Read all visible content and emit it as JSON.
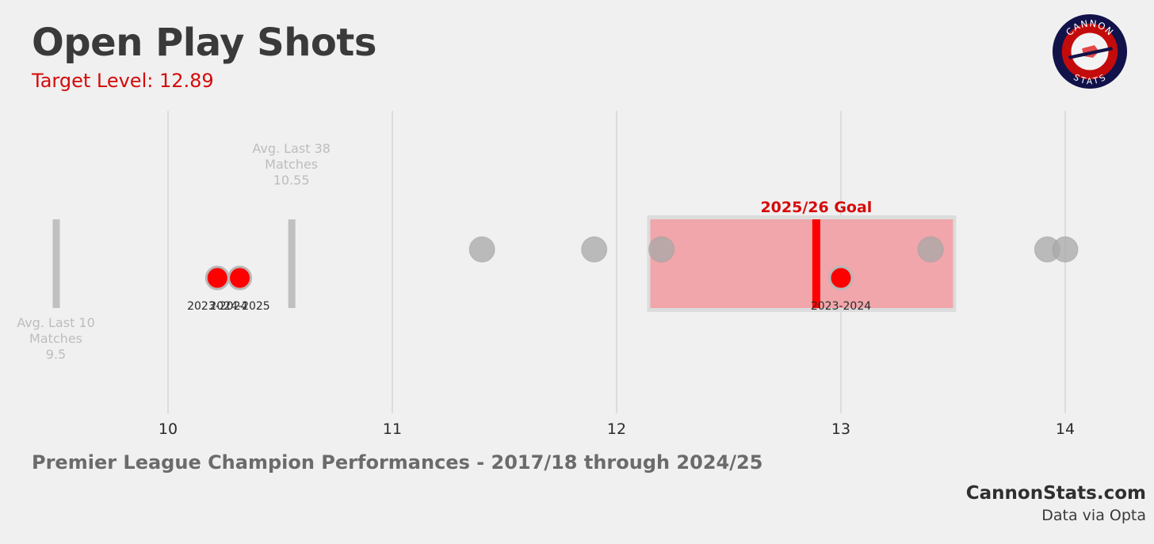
{
  "header": {
    "title": "Open Play Shots",
    "subtitle": "Target Level: 12.89"
  },
  "logo": {
    "top_text": "CANNON",
    "bottom_text": "STATS"
  },
  "footer": {
    "note": "Premier League Champion Performances - 2017/18 through 2024/25",
    "brand": "CannonStats.com",
    "source": "Data via Opta"
  },
  "colors": {
    "accent": "#ff0000",
    "goal_band": "#f0a6aa",
    "grey_point": "#a8a8a8",
    "avg_line": "#c0c0c0"
  },
  "chart_data": {
    "type": "scatter",
    "x_axis": {
      "range": [
        9.35,
        14.4
      ],
      "ticks": [
        10,
        11,
        12,
        13,
        14
      ],
      "tick_labels": [
        "10",
        "11",
        "12",
        "13",
        "14"
      ],
      "grid": true
    },
    "goal": {
      "label": "2025/26 Goal",
      "value": 12.89,
      "band": [
        12.15,
        13.5
      ]
    },
    "reference_lines": [
      {
        "label_lines": [
          "Avg. Last 10",
          "Matches",
          "9.5"
        ],
        "value": 9.5,
        "label_position": "below"
      },
      {
        "label_lines": [
          "Avg. Last 38",
          "Matches",
          "10.55"
        ],
        "value": 10.55,
        "label_position": "above"
      }
    ],
    "grey_points": [
      11.4,
      11.9,
      12.2,
      13.4,
      13.92,
      14.0
    ],
    "highlight_points": [
      {
        "x": 10.22,
        "label": "2023-2024"
      },
      {
        "x": 10.32,
        "label": "2024-2025"
      },
      {
        "x": 13.0,
        "label": "2023-2024"
      }
    ]
  }
}
